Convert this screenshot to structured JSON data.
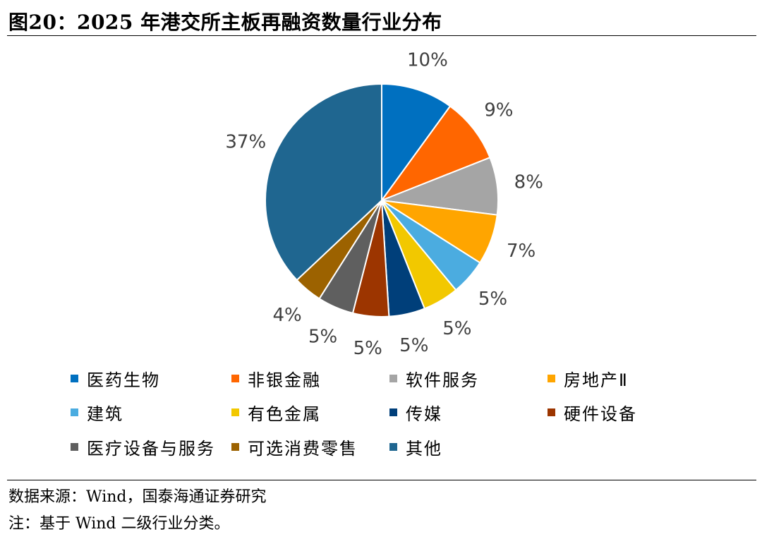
{
  "title": "图20：2025 年港交所主板再融资数量行业分布",
  "source": "数据来源：Wind，国泰海通证券研究",
  "note": "注：基于 Wind 二级行业分类。",
  "chart_data": {
    "type": "pie",
    "title": "",
    "legend_position": "bottom",
    "slices": [
      {
        "label": "医药生物",
        "value": 10,
        "display": "10%",
        "color": "#0070C0"
      },
      {
        "label": "非银金融",
        "value": 9,
        "display": "9%",
        "color": "#FF6600"
      },
      {
        "label": "软件服务",
        "value": 8,
        "display": "8%",
        "color": "#A5A5A5"
      },
      {
        "label": "房地产Ⅱ",
        "value": 7,
        "display": "7%",
        "color": "#FFA500"
      },
      {
        "label": "建筑",
        "value": 5,
        "display": "5%",
        "color": "#4BACE0"
      },
      {
        "label": "有色金属",
        "value": 5,
        "display": "5%",
        "color": "#F2C800"
      },
      {
        "label": "传媒",
        "value": 5,
        "display": "5%",
        "color": "#003F7A"
      },
      {
        "label": "硬件设备",
        "value": 5,
        "display": "5%",
        "color": "#9C3500"
      },
      {
        "label": "医疗设备与服务",
        "value": 5,
        "display": "5%",
        "color": "#5F5F5F"
      },
      {
        "label": "可选消费零售",
        "value": 4,
        "display": "4%",
        "color": "#9C6200"
      },
      {
        "label": "其他",
        "value": 37,
        "display": "37%",
        "color": "#1F6690"
      }
    ]
  }
}
